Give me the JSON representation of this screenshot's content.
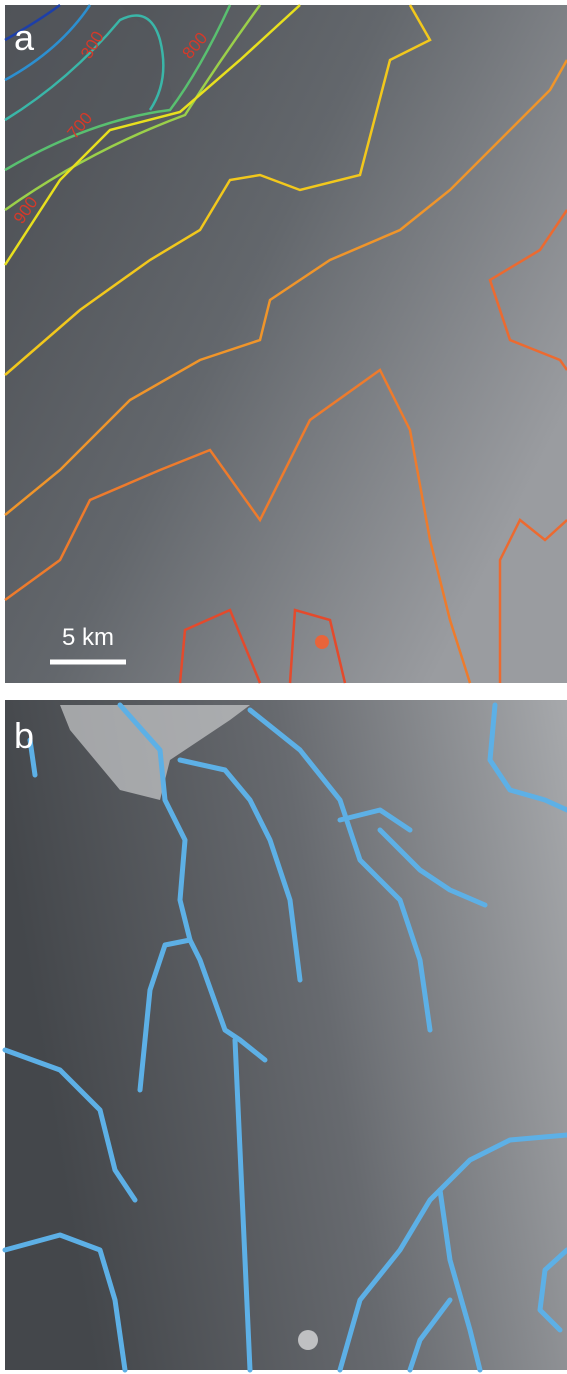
{
  "panels": [
    {
      "label": "a",
      "scale_bar": "5 km",
      "contour_labels": [
        "300",
        "800",
        "700",
        "900"
      ]
    },
    {
      "label": "b"
    }
  ]
}
